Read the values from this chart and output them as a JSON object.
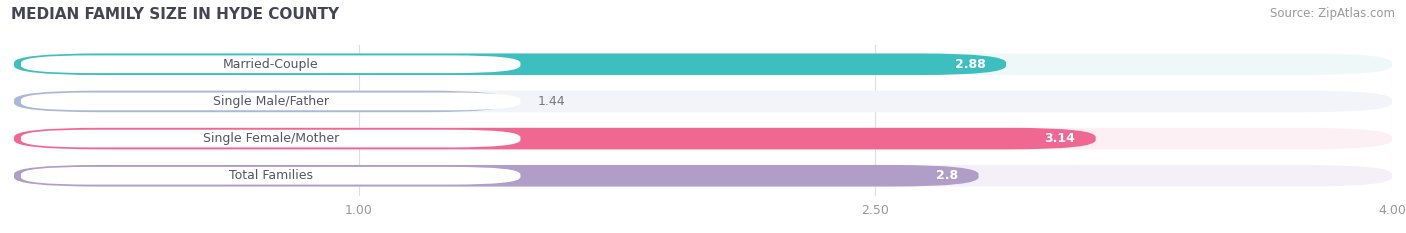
{
  "title": "MEDIAN FAMILY SIZE IN HYDE COUNTY",
  "source": "Source: ZipAtlas.com",
  "categories": [
    "Married-Couple",
    "Single Male/Father",
    "Single Female/Mother",
    "Total Families"
  ],
  "values": [
    2.88,
    1.44,
    3.14,
    2.8
  ],
  "bar_colors": [
    "#3dbfbf",
    "#aab8d8",
    "#f06892",
    "#b09ec8"
  ],
  "bar_bg_colors": [
    "#eff8f8",
    "#f2f4fa",
    "#fdf0f5",
    "#f4f0f8"
  ],
  "label_text_colors": [
    "#555566",
    "#555566",
    "#555566",
    "#555566"
  ],
  "value_text_colors": [
    "white",
    "#777777",
    "white",
    "white"
  ],
  "value_inside": [
    true,
    false,
    true,
    true
  ],
  "xlim_start": 0.0,
  "xlim_end": 4.0,
  "xticks": [
    1.0,
    2.5,
    4.0
  ],
  "xtick_labels": [
    "1.00",
    "2.50",
    "4.00"
  ],
  "figsize": [
    14.06,
    2.33
  ],
  "dpi": 100,
  "bar_height": 0.58,
  "bar_gap": 1.0,
  "label_fontsize": 9.0,
  "value_fontsize": 9.0,
  "title_fontsize": 11,
  "source_fontsize": 8.5,
  "bg_color": "#ffffff",
  "plot_bg_color": "#f7f7f7"
}
